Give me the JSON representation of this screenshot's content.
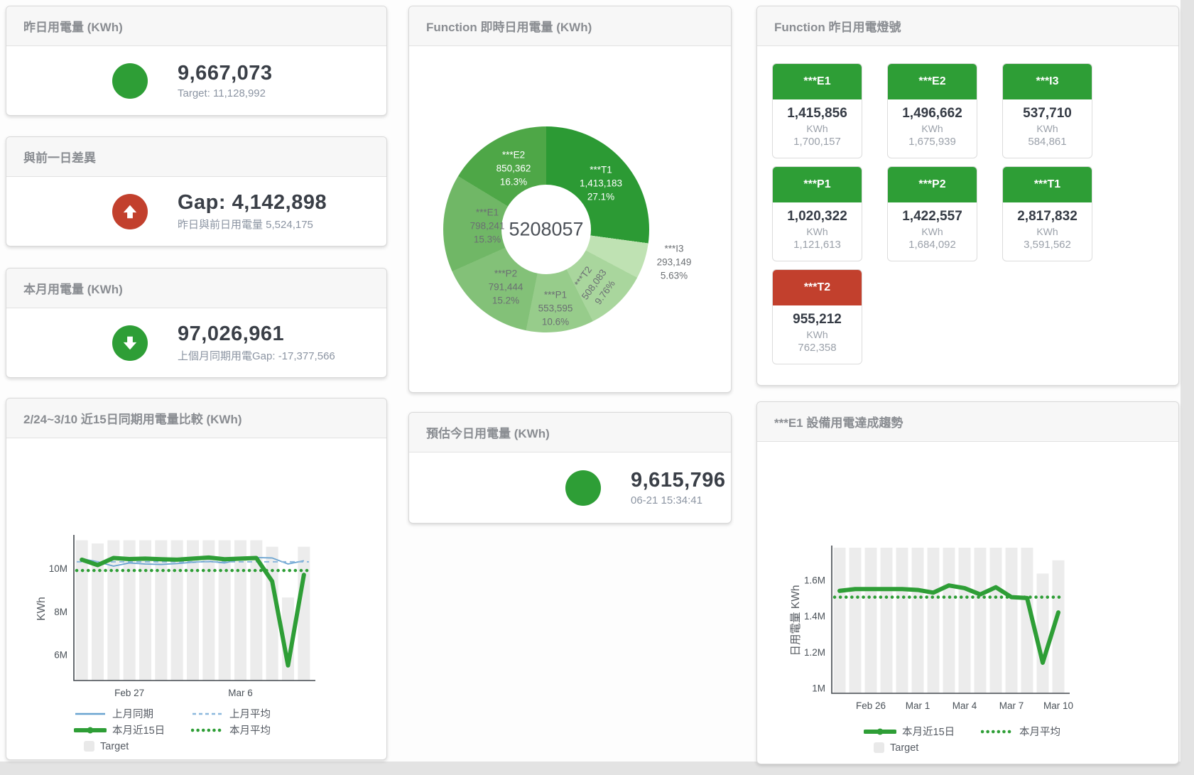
{
  "colors": {
    "green": "#2e9e36",
    "red": "#c2402d",
    "blue": "#69a3d0",
    "target_bar": "#ececec"
  },
  "cards": {
    "yesterday": {
      "title": "昨日用電量 (KWh)",
      "value": "9,667,073",
      "sub": "Target: 11,128,992"
    },
    "gap_prev_day": {
      "title": "與前一日差異",
      "value": "Gap: 4,142,898",
      "sub": "昨日與前日用電量 5,524,175"
    },
    "month": {
      "title": "本月用電量 (KWh)",
      "value": "97,026,961",
      "sub": "上個月同期用電Gap: -17,377,566"
    },
    "estimate_today": {
      "title": "預估今日用電量 (KWh)",
      "value": "9,615,796",
      "sub": "06-21 15:34:41"
    },
    "lights": {
      "title": "Function 昨日用電燈號",
      "unit": "KWh",
      "tiles": [
        {
          "name": "***E1",
          "value": "1,415,856",
          "unit": "KWh",
          "target": "1,700,157",
          "status": "green"
        },
        {
          "name": "***E2",
          "value": "1,496,662",
          "unit": "KWh",
          "target": "1,675,939",
          "status": "green"
        },
        {
          "name": "***I3",
          "value": "537,710",
          "unit": "KWh",
          "target": "584,861",
          "status": "green"
        },
        {
          "name": "***P1",
          "value": "1,020,322",
          "unit": "KWh",
          "target": "1,121,613",
          "status": "green"
        },
        {
          "name": "***P2",
          "value": "1,422,557",
          "unit": "KWh",
          "target": "1,684,092",
          "status": "green"
        },
        {
          "name": "***T1",
          "value": "2,817,832",
          "unit": "KWh",
          "target": "3,591,562",
          "status": "green"
        },
        {
          "name": "***T2",
          "value": "955,212",
          "unit": "KWh",
          "target": "762,358",
          "status": "red"
        }
      ]
    }
  },
  "chart_data": [
    {
      "type": "pie",
      "title": "Function 即時日用電量 (KWh)",
      "center_total": "5208057",
      "unit": "KWh",
      "segments": [
        {
          "name": "***T1",
          "value": 1413183,
          "pct": "27.1%",
          "color": "#2c9a34",
          "label_color": "#ffffff"
        },
        {
          "name": "***I3",
          "value": 293149,
          "pct": "5.63%",
          "color": "#bfe2b3",
          "label_color": "#6b6f73",
          "outside": true
        },
        {
          "name": "***T2",
          "value": 508083,
          "pct": "9.76%",
          "color": "#a9d69d",
          "label_color": "#6b6f73",
          "rotate": -54
        },
        {
          "name": "***P1",
          "value": 553595,
          "pct": "10.6%",
          "color": "#97cc8b",
          "label_color": "#6b6f73"
        },
        {
          "name": "***P2",
          "value": 791444,
          "pct": "15.2%",
          "color": "#83c178",
          "label_color": "#6b6f73"
        },
        {
          "name": "***E1",
          "value": 798241,
          "pct": "15.3%",
          "color": "#70b766",
          "label_color": "#6b6f73"
        },
        {
          "name": "***E2",
          "value": 850362,
          "pct": "16.3%",
          "color": "#4ea747",
          "label_color": "#ffffff"
        }
      ]
    },
    {
      "type": "line+bar",
      "title": "2/24~3/10 近15日同期用電量比較 (KWh)",
      "ylabel": "KWh",
      "yticks": [
        "6M",
        "8M",
        "10M"
      ],
      "ytick_values": [
        6000000,
        8000000,
        10000000
      ],
      "ylim": [
        4800000,
        11450000
      ],
      "num_points": 15,
      "xticks": [
        {
          "label": "Feb 27",
          "index": 3
        },
        {
          "label": "Mar 6",
          "index": 10
        }
      ],
      "legend_position": "bottom",
      "series": [
        {
          "name": "上月同期",
          "type": "line",
          "style": "solid",
          "color": "#69a3d0",
          "values": [
            10450000,
            10300000,
            10100000,
            10250000,
            10200000,
            10180000,
            10220000,
            10280000,
            10320000,
            10250000,
            10420000,
            10500000,
            10480000,
            10200000,
            10350000
          ]
        },
        {
          "name": "上月平均",
          "type": "line",
          "style": "dashed",
          "color": "#8cb8dd",
          "values": 10300000
        },
        {
          "name": "本月近15日",
          "type": "line",
          "style": "thick",
          "color": "#2e9e36",
          "values": [
            10400000,
            10150000,
            10480000,
            10430000,
            10450000,
            10420000,
            10400000,
            10450000,
            10500000,
            10420000,
            10450000,
            10480000,
            9400000,
            5500000,
            9700000
          ]
        },
        {
          "name": "本月平均",
          "type": "line",
          "style": "dotted",
          "color": "#2e9e36",
          "values": 9900000
        },
        {
          "name": "Target",
          "type": "bar",
          "color": "#ececec",
          "values": [
            11300000,
            11150000,
            11300000,
            11300000,
            11300000,
            11300000,
            11300000,
            11300000,
            11300000,
            11300000,
            11300000,
            11300000,
            11000000,
            8650000,
            11000000
          ]
        }
      ]
    },
    {
      "type": "line+bar",
      "title": "***E1 設備用電達成趨勢",
      "ylabel": "日用電量 KWh",
      "yticks": [
        "1M",
        "1.2M",
        "1.4M",
        "1.6M"
      ],
      "ytick_values": [
        1000000,
        1200000,
        1400000,
        1600000
      ],
      "ylim": [
        970000,
        1780000
      ],
      "num_points": 15,
      "xticks": [
        {
          "label": "Feb 26",
          "index": 2
        },
        {
          "label": "Mar 1",
          "index": 5
        },
        {
          "label": "Mar 4",
          "index": 8
        },
        {
          "label": "Mar 7",
          "index": 11
        },
        {
          "label": "Mar 10",
          "index": 14
        }
      ],
      "legend_position": "bottom",
      "series": [
        {
          "name": "本月近15日",
          "type": "line",
          "style": "thick",
          "color": "#2e9e36",
          "values": [
            1540000,
            1550000,
            1550000,
            1550000,
            1550000,
            1545000,
            1530000,
            1570000,
            1555000,
            1520000,
            1560000,
            1505000,
            1500000,
            1140000,
            1420000
          ]
        },
        {
          "name": "本月平均",
          "type": "line",
          "style": "dotted",
          "color": "#2e9e36",
          "values": 1505000
        },
        {
          "name": "Target",
          "type": "bar",
          "color": "#ececec",
          "values": [
            1780000,
            1780000,
            1780000,
            1780000,
            1780000,
            1780000,
            1780000,
            1780000,
            1780000,
            1780000,
            1780000,
            1780000,
            1780000,
            1636000,
            1710000
          ]
        }
      ]
    }
  ]
}
